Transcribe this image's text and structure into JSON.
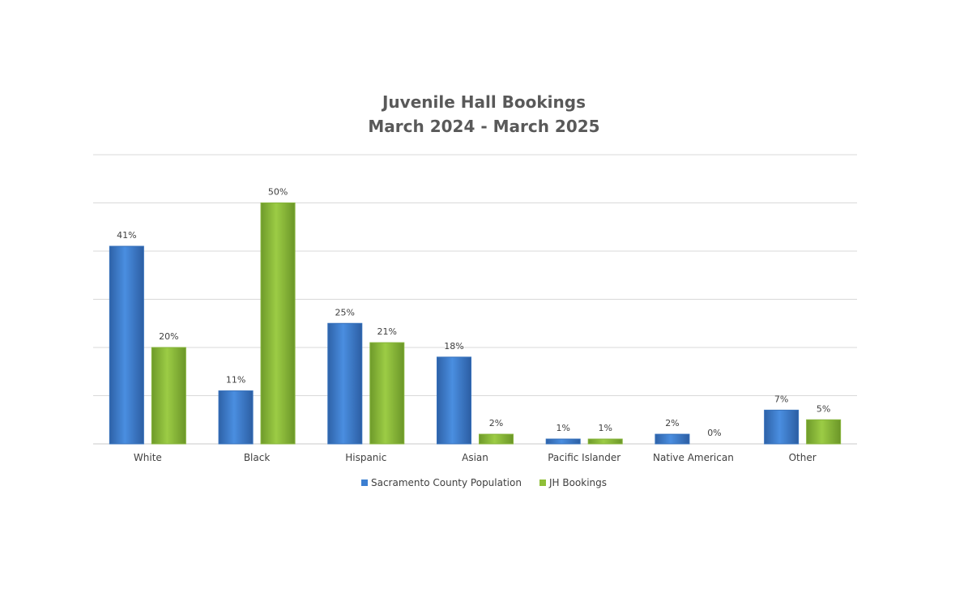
{
  "chart_data": {
    "type": "bar",
    "title": "Juvenile Hall Bookings",
    "subtitle": "March 2024 - March 2025",
    "categories": [
      "White",
      "Black",
      "Hispanic",
      "Asian",
      "Pacific Islander",
      "Native American",
      "Other"
    ],
    "series": [
      {
        "name": "Sacramento County Population",
        "values": [
          41,
          11,
          25,
          18,
          1,
          2,
          7
        ],
        "labels": [
          "41%",
          "11%",
          "25%",
          "18%",
          "1%",
          "2%",
          "7%"
        ],
        "color": "#3c7fd1"
      },
      {
        "name": "JH Bookings",
        "values": [
          20,
          50,
          21,
          2,
          1,
          0,
          5
        ],
        "labels": [
          "20%",
          "50%",
          "21%",
          "2%",
          "1%",
          "0%",
          "5%"
        ],
        "color": "#8fbf38"
      }
    ],
    "ylim": [
      0,
      60
    ],
    "grid": true,
    "legend": "bottom"
  }
}
